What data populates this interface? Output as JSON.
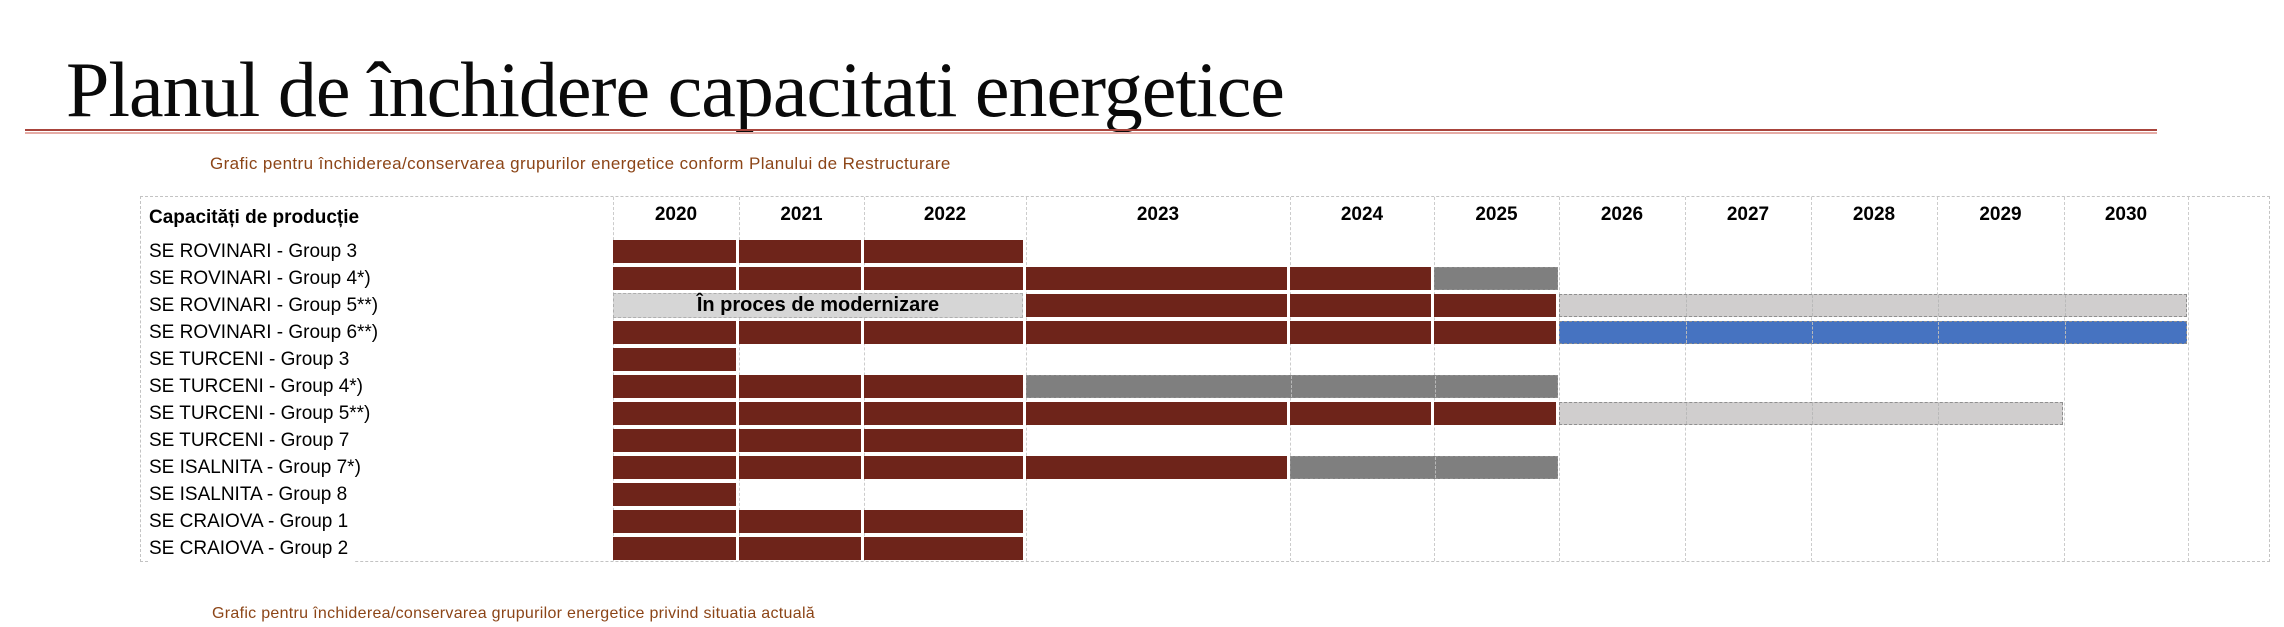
{
  "page": {
    "title": "Planul de închidere capacitati energetice",
    "subtitle": "Grafic pentru închiderea/conservarea grupurilor energetice conform Planului de Restructurare",
    "footer_partial": "Grafic pentru închiderea/conservarea grupurilor energetice privind situatia actuală"
  },
  "colors": {
    "red": "#6E241A",
    "dark_gray": "#7F7F7F",
    "light_gray": "#D0CECE",
    "blue": "#4673C1",
    "modernization": "#D6D6D6",
    "subtitle_text": "#8C4517",
    "underline_dark": "#A8443C",
    "underline_light": "#E5ACA6"
  },
  "chart_data": {
    "type": "gantt",
    "title": "Planul de închidere capacitati energetice",
    "subtitle": "Grafic pentru închiderea/conservarea grupurilor energetice conform Planului de Restructurare",
    "header_label": "Capacități de producție",
    "years": [
      "2020",
      "2021",
      "2022",
      "2023",
      "2024",
      "2025",
      "2026",
      "2027",
      "2028",
      "2029",
      "2030"
    ],
    "modernization_text": "În proces de modernizare",
    "rows": [
      {
        "label": "SE ROVINARI - Group 3",
        "segments": [
          {
            "start": "2020",
            "end": "2022",
            "style": "red"
          }
        ]
      },
      {
        "label": "SE ROVINARI - Group 4*)",
        "segments": [
          {
            "start": "2020",
            "end": "2024",
            "style": "red"
          },
          {
            "start": "2025",
            "end": "2025",
            "style": "dark_gray"
          }
        ]
      },
      {
        "label": "SE ROVINARI - Group 5**)",
        "segments": [
          {
            "start": "2020",
            "end": "2022",
            "style": "modernization",
            "text": "În proces de modernizare"
          },
          {
            "start": "2023",
            "end": "2025",
            "style": "red"
          },
          {
            "start": "2026",
            "end": "2030",
            "style": "light_gray"
          }
        ]
      },
      {
        "label": "SE ROVINARI - Group 6**)",
        "segments": [
          {
            "start": "2020",
            "end": "2025",
            "style": "red"
          },
          {
            "start": "2026",
            "end": "2030",
            "style": "blue"
          }
        ]
      },
      {
        "label": "SE TURCENI - Group 3",
        "segments": [
          {
            "start": "2020",
            "end": "2020",
            "style": "red"
          }
        ]
      },
      {
        "label": "SE TURCENI - Group 4*)",
        "segments": [
          {
            "start": "2020",
            "end": "2022",
            "style": "red"
          },
          {
            "start": "2023",
            "end": "2025",
            "style": "dark_gray"
          }
        ]
      },
      {
        "label": "SE TURCENI - Group 5**)",
        "segments": [
          {
            "start": "2020",
            "end": "2025",
            "style": "red"
          },
          {
            "start": "2026",
            "end": "2029",
            "style": "light_gray"
          }
        ]
      },
      {
        "label": "SE TURCENI - Group 7",
        "segments": [
          {
            "start": "2020",
            "end": "2022",
            "style": "red"
          }
        ]
      },
      {
        "label": "SE ISALNITA - Group 7*)",
        "segments": [
          {
            "start": "2020",
            "end": "2023",
            "style": "red"
          },
          {
            "start": "2024",
            "end": "2025",
            "style": "dark_gray"
          }
        ]
      },
      {
        "label": "SE ISALNITA - Group 8",
        "segments": [
          {
            "start": "2020",
            "end": "2020",
            "style": "red"
          }
        ]
      },
      {
        "label": "SE CRAIOVA - Group 1",
        "segments": [
          {
            "start": "2020",
            "end": "2022",
            "style": "red"
          }
        ]
      },
      {
        "label": "SE CRAIOVA - Group 2",
        "segments": [
          {
            "start": "2020",
            "end": "2022",
            "style": "red"
          }
        ]
      }
    ]
  }
}
